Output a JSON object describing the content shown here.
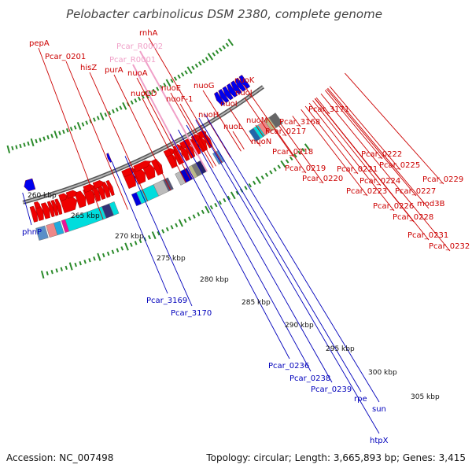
{
  "title": "Pelobacter carbinolicus DSM 2380, complete genome",
  "footer": {
    "accession": "Accession: NC_007498",
    "topology": "Topology: circular; Length: 3,665,893 bp; Genes: 3,415"
  },
  "colors": {
    "forward_gene": "#ee0000",
    "reverse_gene": "#0000ee",
    "label_forward": "#cc0000",
    "label_reverse": "#0000bb",
    "rna_label": "#f0a0c8",
    "ring": "#888888",
    "tick_marks": "#2a8a2a",
    "cog_cyan": "#00dddd",
    "cog_gray": "#bbbbbb"
  },
  "scale": {
    "unit": "kbp",
    "ticks": [
      "260 kbp",
      "265 kbp",
      "270 kbp",
      "275 kbp",
      "280 kbp",
      "285 kbp",
      "290 kbp",
      "295 kbp",
      "300 kbp",
      "305 kbp"
    ]
  },
  "forward_labels": [
    "pepA",
    "Pcar_0201",
    "hisZ",
    "rnhA",
    "Pcar_R0002",
    "Pcar_R0001",
    "purA",
    "nuoA",
    "nuoCD",
    "nuoE",
    "nuoF-1",
    "nuoG",
    "nuoK",
    "nuoJ",
    "nuoI",
    "nuoH",
    "nuoL",
    "nuoM",
    "nuoN",
    "Pcar_3168",
    "Pcar_3171",
    "Pcar_0217",
    "Pcar_0218",
    "Pcar_0219",
    "Pcar_0220",
    "Pcar_0221",
    "Pcar_0222",
    "Pcar_0225",
    "Pcar_0224",
    "Pcar_0223",
    "Pcar_0229",
    "Pcar_0227",
    "Pcar_0226",
    "mod3B",
    "Pcar_0228",
    "Pcar_0231",
    "Pcar_0232"
  ],
  "reverse_labels": [
    "phnP",
    "Pcar_3169",
    "Pcar_3170",
    "Pcar_0236",
    "Pcar_0238",
    "Pcar_0239",
    "rpe",
    "sun",
    "htpX"
  ]
}
